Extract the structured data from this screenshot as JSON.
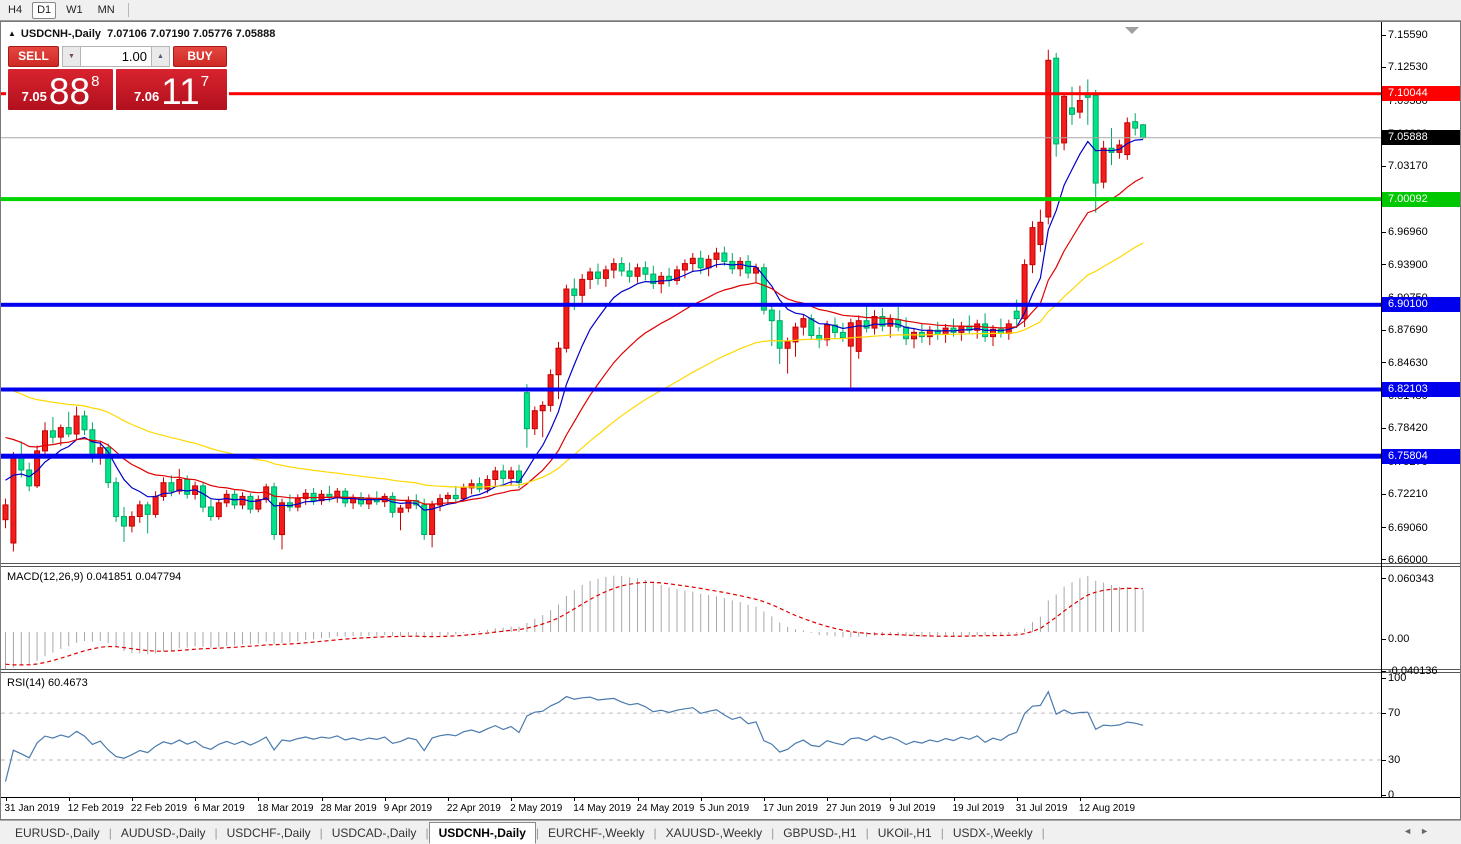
{
  "toolbar": {
    "timeframes": [
      {
        "label": "H4",
        "active": false
      },
      {
        "label": "D1",
        "active": true
      },
      {
        "label": "W1",
        "active": false
      },
      {
        "label": "MN",
        "active": false
      }
    ]
  },
  "chart": {
    "title": {
      "marker": "▲",
      "symbol": "USDCNH-,Daily",
      "quote": "7.07106 7.07190 7.05776 7.05888"
    },
    "trade_panel": {
      "sell_label": "SELL",
      "buy_label": "BUY",
      "volume": "1.00",
      "spinner_down": "▼",
      "spinner_up": "▲",
      "sell": {
        "prefix": "7.05",
        "big": "88",
        "sup": "8"
      },
      "buy": {
        "prefix": "7.06",
        "big": "11",
        "sup": "7"
      }
    },
    "shift_marker": "▼"
  },
  "chart_data": {
    "type": "candlestick",
    "symbol": "USDCNH",
    "timeframe": "Daily",
    "ohlc_current": {
      "open": 7.07106,
      "high": 7.0719,
      "low": 7.05776,
      "close": 7.05888
    },
    "price_axis_ticks": [
      "7.15590",
      "7.12530",
      "7.09380",
      "7.06230",
      "7.03170",
      "7.00110",
      "6.96960",
      "6.93900",
      "6.90750",
      "6.87690",
      "6.84630",
      "6.81480",
      "6.78420",
      "6.75270",
      "6.72210",
      "6.69060",
      "6.66000"
    ],
    "x_labels": [
      "31 Jan 2019",
      "12 Feb 2019",
      "22 Feb 2019",
      "6 Mar 2019",
      "18 Mar 2019",
      "28 Mar 2019",
      "9 Apr 2019",
      "22 Apr 2019",
      "2 May 2019",
      "14 May 2019",
      "24 May 2019",
      "5 Jun 2019",
      "17 Jun 2019",
      "27 Jun 2019",
      "9 Jul 2019",
      "19 Jul 2019",
      "31 Jul 2019",
      "12 Aug 2019"
    ],
    "bars_per_label": 8,
    "candles": [
      [
        6.698,
        6.718,
        6.69,
        6.712
      ],
      [
        6.676,
        6.762,
        6.668,
        6.757
      ],
      [
        6.757,
        6.772,
        6.738,
        6.745
      ],
      [
        6.745,
        6.752,
        6.725,
        6.73
      ],
      [
        6.73,
        6.768,
        6.728,
        6.763
      ],
      [
        6.763,
        6.79,
        6.758,
        6.782
      ],
      [
        6.782,
        6.795,
        6.77,
        6.776
      ],
      [
        6.776,
        6.788,
        6.768,
        6.785
      ],
      [
        6.785,
        6.8,
        6.776,
        6.779
      ],
      [
        6.779,
        6.805,
        6.774,
        6.796
      ],
      [
        6.796,
        6.801,
        6.778,
        6.783
      ],
      [
        6.783,
        6.79,
        6.752,
        6.757
      ],
      [
        6.757,
        6.772,
        6.75,
        6.766
      ],
      [
        6.766,
        6.77,
        6.728,
        6.733
      ],
      [
        6.733,
        6.738,
        6.696,
        6.701
      ],
      [
        6.701,
        6.71,
        6.677,
        6.692
      ],
      [
        6.692,
        6.706,
        6.686,
        6.701
      ],
      [
        6.701,
        6.716,
        6.695,
        6.712
      ],
      [
        6.712,
        6.715,
        6.685,
        6.703
      ],
      [
        6.703,
        6.725,
        6.7,
        6.72
      ],
      [
        6.72,
        6.738,
        6.716,
        6.733
      ],
      [
        6.733,
        6.74,
        6.72,
        6.725
      ],
      [
        6.725,
        6.746,
        6.722,
        6.736
      ],
      [
        6.736,
        6.74,
        6.718,
        6.722
      ],
      [
        6.722,
        6.734,
        6.717,
        6.73
      ],
      [
        6.73,
        6.733,
        6.705,
        6.71
      ],
      [
        6.71,
        6.717,
        6.697,
        6.701
      ],
      [
        6.701,
        6.718,
        6.698,
        6.714
      ],
      [
        6.714,
        6.726,
        6.71,
        6.722
      ],
      [
        6.722,
        6.727,
        6.708,
        6.712
      ],
      [
        6.712,
        6.724,
        6.708,
        6.72
      ],
      [
        6.72,
        6.723,
        6.704,
        6.708
      ],
      [
        6.708,
        6.721,
        6.705,
        6.717
      ],
      [
        6.717,
        6.732,
        6.714,
        6.729
      ],
      [
        6.729,
        6.733,
        6.679,
        6.684
      ],
      [
        6.684,
        6.718,
        6.67,
        6.714
      ],
      [
        6.714,
        6.722,
        6.706,
        6.71
      ],
      [
        6.71,
        6.722,
        6.706,
        6.718
      ],
      [
        6.718,
        6.727,
        6.712,
        6.723
      ],
      [
        6.723,
        6.728,
        6.712,
        6.716
      ],
      [
        6.716,
        6.726,
        6.712,
        6.722
      ],
      [
        6.722,
        6.73,
        6.715,
        6.719
      ],
      [
        6.719,
        6.728,
        6.714,
        6.725
      ],
      [
        6.725,
        6.728,
        6.71,
        6.714
      ],
      [
        6.714,
        6.722,
        6.708,
        6.719
      ],
      [
        6.719,
        6.724,
        6.71,
        6.713
      ],
      [
        6.713,
        6.722,
        6.708,
        6.718
      ],
      [
        6.718,
        6.725,
        6.712,
        6.715
      ],
      [
        6.715,
        6.723,
        6.71,
        6.72
      ],
      [
        6.72,
        6.724,
        6.7,
        6.705
      ],
      [
        6.705,
        6.712,
        6.688,
        6.709
      ],
      [
        6.709,
        6.72,
        6.705,
        6.716
      ],
      [
        6.716,
        6.722,
        6.708,
        6.712
      ],
      [
        6.712,
        6.718,
        6.679,
        6.684
      ],
      [
        6.684,
        6.716,
        6.672,
        6.712
      ],
      [
        6.712,
        6.722,
        6.706,
        6.718
      ],
      [
        6.718,
        6.724,
        6.712,
        6.721
      ],
      [
        6.721,
        6.73,
        6.714,
        6.718
      ],
      [
        6.718,
        6.732,
        6.715,
        6.728
      ],
      [
        6.728,
        6.736,
        6.722,
        6.732
      ],
      [
        6.732,
        6.738,
        6.724,
        6.727
      ],
      [
        6.727,
        6.74,
        6.723,
        6.736
      ],
      [
        6.736,
        6.748,
        6.73,
        6.744
      ],
      [
        6.744,
        6.75,
        6.732,
        6.737
      ],
      [
        6.737,
        6.748,
        6.73,
        6.744
      ],
      [
        6.744,
        6.75,
        6.728,
        6.733
      ],
      [
        6.818,
        6.826,
        6.766,
        6.784
      ],
      [
        6.784,
        6.805,
        6.778,
        6.801
      ],
      [
        6.801,
        6.81,
        6.776,
        6.806
      ],
      [
        6.806,
        6.84,
        6.8,
        6.835
      ],
      [
        6.835,
        6.866,
        6.812,
        6.86
      ],
      [
        6.86,
        6.92,
        6.856,
        6.916
      ],
      [
        6.916,
        6.926,
        6.896,
        6.91
      ],
      [
        6.91,
        6.93,
        6.902,
        6.925
      ],
      [
        6.925,
        6.936,
        6.916,
        6.932
      ],
      [
        6.932,
        6.94,
        6.92,
        6.926
      ],
      [
        6.926,
        6.938,
        6.918,
        6.934
      ],
      [
        6.934,
        6.945,
        6.926,
        6.94
      ],
      [
        6.94,
        6.946,
        6.928,
        6.933
      ],
      [
        6.933,
        6.941,
        6.922,
        6.928
      ],
      [
        6.928,
        6.94,
        6.922,
        6.936
      ],
      [
        6.936,
        6.942,
        6.924,
        6.93
      ],
      [
        6.93,
        6.938,
        6.916,
        6.921
      ],
      [
        6.921,
        6.932,
        6.912,
        6.928
      ],
      [
        6.928,
        6.936,
        6.918,
        6.924
      ],
      [
        6.924,
        6.938,
        6.92,
        6.934
      ],
      [
        6.934,
        6.944,
        6.926,
        6.94
      ],
      [
        6.94,
        6.95,
        6.932,
        6.945
      ],
      [
        6.945,
        6.952,
        6.93,
        6.936
      ],
      [
        6.936,
        6.948,
        6.928,
        6.944
      ],
      [
        6.944,
        6.955,
        6.936,
        6.95
      ],
      [
        6.95,
        6.956,
        6.938,
        6.942
      ],
      [
        6.942,
        6.95,
        6.93,
        6.935
      ],
      [
        6.935,
        6.946,
        6.928,
        6.942
      ],
      [
        6.942,
        6.948,
        6.926,
        6.931
      ],
      [
        6.931,
        6.94,
        6.922,
        6.936
      ],
      [
        6.936,
        6.94,
        6.892,
        6.896
      ],
      [
        6.896,
        6.902,
        6.862,
        6.886
      ],
      [
        6.886,
        6.896,
        6.845,
        6.86
      ],
      [
        6.86,
        6.87,
        6.836,
        6.866
      ],
      [
        6.866,
        6.884,
        6.852,
        6.88
      ],
      [
        6.88,
        6.892,
        6.872,
        6.888
      ],
      [
        6.888,
        6.892,
        6.868,
        6.872
      ],
      [
        6.872,
        6.88,
        6.86,
        6.868
      ],
      [
        6.868,
        6.886,
        6.862,
        6.882
      ],
      [
        6.882,
        6.889,
        6.87,
        6.875
      ],
      [
        6.875,
        6.884,
        6.866,
        6.87
      ],
      [
        6.862,
        6.888,
        6.821,
        6.884
      ],
      [
        6.857,
        6.891,
        6.85,
        6.886
      ],
      [
        6.886,
        6.9,
        6.875,
        6.879
      ],
      [
        6.879,
        6.896,
        6.873,
        6.89
      ],
      [
        6.89,
        6.898,
        6.876,
        6.881
      ],
      [
        6.881,
        6.892,
        6.87,
        6.887
      ],
      [
        6.887,
        6.899,
        6.876,
        6.88
      ],
      [
        6.88,
        6.889,
        6.863,
        6.869
      ],
      [
        6.869,
        6.879,
        6.86,
        6.875
      ],
      [
        6.875,
        6.883,
        6.865,
        6.871
      ],
      [
        6.871,
        6.881,
        6.863,
        6.877
      ],
      [
        6.877,
        6.885,
        6.868,
        6.873
      ],
      [
        6.873,
        6.883,
        6.865,
        6.879
      ],
      [
        6.879,
        6.888,
        6.871,
        6.875
      ],
      [
        6.875,
        6.885,
        6.867,
        6.881
      ],
      [
        6.881,
        6.891,
        6.873,
        6.877
      ],
      [
        6.877,
        6.887,
        6.869,
        6.883
      ],
      [
        6.883,
        6.893,
        6.866,
        6.871
      ],
      [
        6.871,
        6.882,
        6.862,
        6.878
      ],
      [
        6.878,
        6.888,
        6.87,
        6.874
      ],
      [
        6.874,
        6.887,
        6.868,
        6.883
      ],
      [
        6.895,
        6.906,
        6.879,
        6.888
      ],
      [
        6.888,
        6.944,
        6.88,
        6.939
      ],
      [
        6.939,
        6.98,
        6.931,
        6.974
      ],
      [
        6.958,
        6.991,
        6.951,
        6.979
      ],
      [
        6.984,
        7.142,
        6.977,
        7.132
      ],
      [
        7.134,
        7.139,
        7.041,
        7.053
      ],
      [
        7.054,
        7.101,
        7.047,
        7.098
      ],
      [
        7.087,
        7.107,
        7.071,
        7.081
      ],
      [
        7.083,
        7.108,
        7.077,
        7.094
      ],
      [
        7.101,
        7.114,
        7.071,
        7.097
      ],
      [
        7.099,
        7.104,
        6.988,
        7.016
      ],
      [
        7.017,
        7.056,
        7.011,
        7.049
      ],
      [
        7.049,
        7.068,
        7.033,
        7.045
      ],
      [
        7.045,
        7.057,
        7.039,
        7.052
      ],
      [
        7.043,
        7.078,
        7.038,
        7.073
      ],
      [
        7.074,
        7.082,
        7.061,
        7.068
      ],
      [
        7.07106,
        7.0719,
        7.05776,
        7.05888
      ]
    ],
    "indicator_warmup_closes": [
      6.882,
      6.875,
      6.868,
      6.86,
      6.852,
      6.845,
      6.838,
      6.832,
      6.825,
      6.818,
      6.81,
      6.8,
      6.79,
      6.78,
      6.772,
      6.764,
      6.756,
      6.748,
      6.74,
      6.73,
      6.72,
      6.71
    ],
    "horizontal_lines": [
      {
        "price": 7.10044,
        "label": "7.10044",
        "color": "#ff0000",
        "width": 3
      },
      {
        "price": 7.00092,
        "label": "7.00092",
        "color": "#00d500",
        "width": 4
      },
      {
        "price": 6.901,
        "label": "6.90100",
        "color": "#0000ee",
        "width": 4
      },
      {
        "price": 6.82103,
        "label": "6.82103",
        "color": "#0000ee",
        "width": 4
      },
      {
        "price": 6.75804,
        "label": "6.75804",
        "color": "#0000ee",
        "width": 5
      }
    ],
    "current_price": {
      "value": 7.05888,
      "label": "7.05888"
    },
    "moving_averages": [
      {
        "period": 8,
        "color": "#0000c8"
      },
      {
        "period": 20,
        "color": "#e00000"
      },
      {
        "period": 50,
        "color": "#ffd800"
      }
    ],
    "macd": {
      "label": "MACD(12,26,9)",
      "values": "0.041851 0.047794",
      "params": {
        "fast": 12,
        "slow": 26,
        "signal": 9
      },
      "axis_ticks": [
        "0.060343",
        "0.00",
        "-0.040136"
      ],
      "axis_values": [
        0.060343,
        0,
        -0.040136
      ]
    },
    "rsi": {
      "label": "RSI(14)",
      "value": "60.4673",
      "period": 14,
      "axis_ticks": [
        "100",
        "70",
        "30",
        "0"
      ],
      "axis_values": [
        100,
        70,
        30,
        0
      ],
      "levels": [
        70,
        30
      ]
    }
  },
  "colors": {
    "up": "#f21d1d",
    "up_border": "#c40000",
    "down": "#00e38a",
    "down_border": "#00a864",
    "macd_hist": "#a8a8a8",
    "macd_signal": "#dd0000",
    "rsi_line": "#4a7aad",
    "level_dash": "#bdbdbd",
    "current_price_line": "#a8a8a8",
    "badge_current": "#000000",
    "badge_red": "#ff0000",
    "badge_green": "#00c800",
    "badge_blue": "#0000ee"
  },
  "tabs": {
    "items": [
      {
        "label": "EURUSD-,Daily",
        "active": false
      },
      {
        "label": "AUDUSD-,Daily",
        "active": false
      },
      {
        "label": "USDCHF-,Daily",
        "active": false
      },
      {
        "label": "USDCAD-,Daily",
        "active": false
      },
      {
        "label": "USDCNH-,Daily",
        "active": true
      },
      {
        "label": "EURCHF-,Weekly",
        "active": false
      },
      {
        "label": "XAUUSD-,Weekly",
        "active": false
      },
      {
        "label": "GBPUSD-,H1",
        "active": false
      },
      {
        "label": "UKOil-,H1",
        "active": false
      },
      {
        "label": "USDX-,Weekly",
        "active": false
      }
    ],
    "nav_left": "◄",
    "nav_right": "►"
  }
}
